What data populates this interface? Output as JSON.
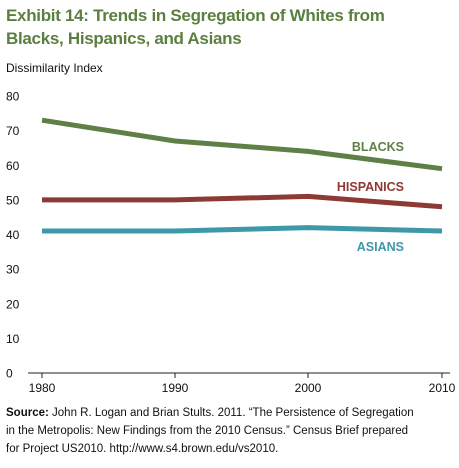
{
  "header": {
    "title_line1": "Exhibit 14: Trends in Segregation of Whites from",
    "title_line2": "Blacks, Hispanics, and Asians"
  },
  "chart_data": {
    "type": "line",
    "title": "Exhibit 14: Trends in Segregation of Whites from Blacks, Hispanics, and Asians",
    "ylabel": "Dissimilarity Index",
    "xlabel": "",
    "x": [
      1980,
      1990,
      2000,
      2010
    ],
    "x_tick_labels": [
      "1980",
      "1990",
      "2000",
      "2010"
    ],
    "ylim": [
      0,
      80
    ],
    "y_ticks": [
      0,
      10,
      20,
      30,
      40,
      50,
      60,
      70,
      80
    ],
    "grid": false,
    "series": [
      {
        "name": "BLACKS",
        "values": [
          73,
          67,
          64,
          59
        ],
        "color": "#5e7f45"
      },
      {
        "name": "HISPANICS",
        "values": [
          50,
          50,
          51,
          48
        ],
        "color": "#8e3a34"
      },
      {
        "name": "ASIANS",
        "values": [
          41,
          41,
          42,
          41
        ],
        "color": "#3d98a8"
      }
    ]
  },
  "footer": {
    "source_label": "Source:",
    "source_text_line1": " John R. Logan and Brian Stults. 2011. “The Persistence of Segregation",
    "source_text_line2": "in the Metropolis: New Findings from the 2010 Census.” Census Brief prepared",
    "source_text_line3": "for Project US2010. http://www.s4.brown.edu/vs2010."
  }
}
